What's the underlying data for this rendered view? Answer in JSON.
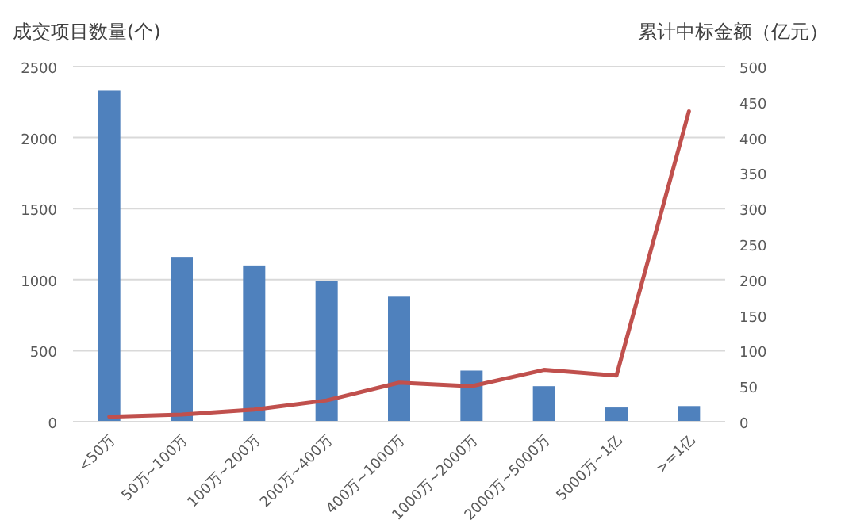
{
  "chart_data": {
    "type": "bar",
    "ylabel": "成交项目数量(个)",
    "y2label": "累计中标金额（亿元）",
    "categories": [
      "<50万",
      "50万~100万",
      "100万~200万",
      "200万~400万",
      "400万~1000万",
      "1000万~2000万",
      "2000万~5000万",
      "5000万~1亿",
      ">=1亿"
    ],
    "series": [
      {
        "color": "#4f81bd",
        "values": [
          2330,
          1160,
          1100,
          990,
          880,
          360,
          250,
          100,
          110
        ]
      },
      {
        "type": "line",
        "axis": "y2",
        "color": "#c0504d",
        "values": [
          7,
          10,
          17,
          30,
          55,
          50,
          73,
          65,
          437
        ]
      }
    ],
    "ylim": [
      0,
      2500
    ],
    "yticks": [
      0,
      500,
      1000,
      1500,
      2000,
      2500
    ],
    "y2lim": [
      0,
      500
    ],
    "y2ticks": [
      0,
      50,
      100,
      150,
      200,
      250,
      300,
      350,
      400,
      450,
      500
    ],
    "grid": "y"
  }
}
